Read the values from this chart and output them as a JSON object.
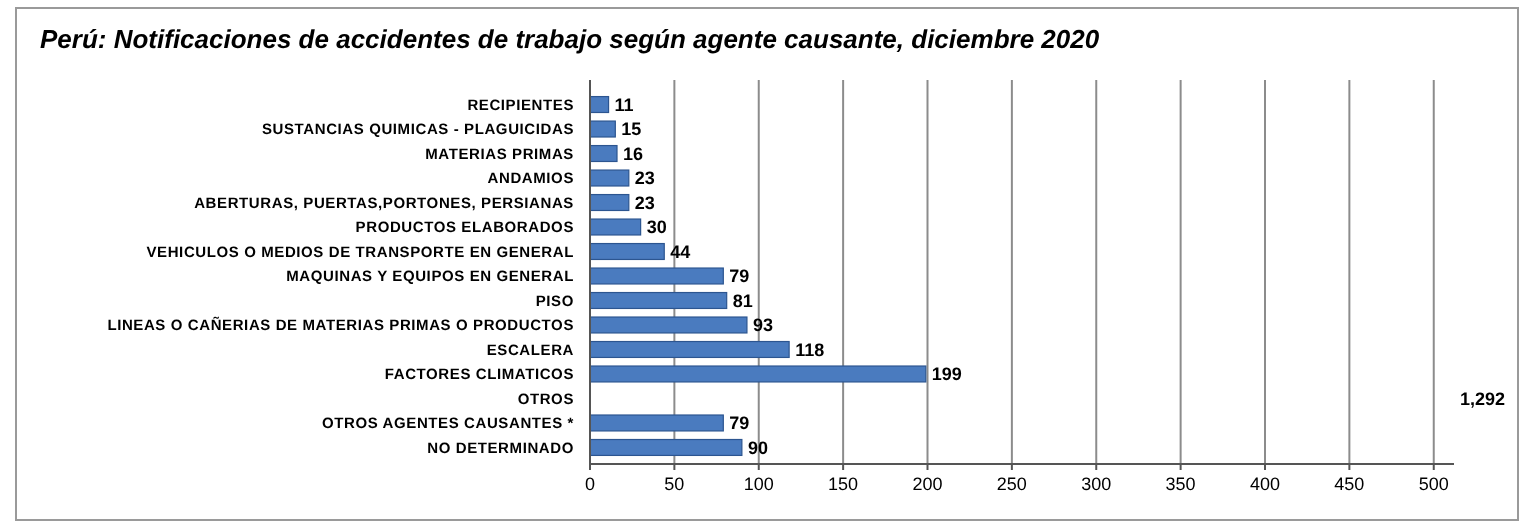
{
  "chart_data": {
    "type": "bar",
    "orientation": "horizontal",
    "title": "Perú: Notificaciones  de accidentes de trabajo según agente causante, diciembre 2020",
    "categories": [
      "RECIPIENTES",
      "SUSTANCIAS QUIMICAS - PLAGUICIDAS",
      "MATERIAS PRIMAS",
      "ANDAMIOS",
      "ABERTURAS, PUERTAS,PORTONES, PERSIANAS",
      "PRODUCTOS ELABORADOS",
      "VEHICULOS O MEDIOS DE TRANSPORTE EN GENERAL",
      "MAQUINAS Y EQUIPOS EN GENERAL",
      "PISO",
      "LINEAS O CAÑERIAS DE MATERIAS PRIMAS O PRODUCTOS",
      "ESCALERA",
      "FACTORES CLIMATICOS",
      "OTROS",
      "OTROS AGENTES CAUSANTES *",
      "NO DETERMINADO"
    ],
    "values": [
      11,
      15,
      16,
      23,
      23,
      30,
      44,
      79,
      81,
      93,
      118,
      199,
      null,
      79,
      90
    ],
    "value_labels": [
      "11",
      "15",
      "16",
      "23",
      "23",
      "30",
      "44",
      "79",
      "81",
      "93",
      "118",
      "199",
      "1,292",
      "79",
      "90"
    ],
    "color": "#4a7bbf",
    "xlim": [
      0,
      512
    ],
    "xticks": [
      0,
      50,
      100,
      150,
      200,
      250,
      300,
      350,
      400,
      450,
      500
    ],
    "grid": "x"
  }
}
